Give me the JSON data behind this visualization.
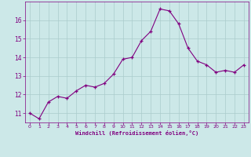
{
  "x": [
    0,
    1,
    2,
    3,
    4,
    5,
    6,
    7,
    8,
    9,
    10,
    11,
    12,
    13,
    14,
    15,
    16,
    17,
    18,
    19,
    20,
    21,
    22,
    23
  ],
  "y": [
    11.0,
    10.7,
    11.6,
    11.9,
    11.8,
    12.2,
    12.5,
    12.4,
    12.6,
    13.1,
    13.9,
    14.0,
    14.9,
    15.4,
    16.6,
    16.5,
    15.8,
    14.5,
    13.8,
    13.6,
    13.2,
    13.3,
    13.2,
    13.6
  ],
  "line_color": "#800080",
  "marker": "+",
  "bg_color": "#cce8e8",
  "grid_color": "#aacccc",
  "xlabel": "Windchill (Refroidissement éolien,°C)",
  "xlabel_color": "#800080",
  "tick_color": "#800080",
  "ylim": [
    10.5,
    17.0
  ],
  "yticks": [
    11,
    12,
    13,
    14,
    15,
    16
  ],
  "xticks": [
    0,
    1,
    2,
    3,
    4,
    5,
    6,
    7,
    8,
    9,
    10,
    11,
    12,
    13,
    14,
    15,
    16,
    17,
    18,
    19,
    20,
    21,
    22,
    23
  ],
  "figsize": [
    3.2,
    2.0
  ],
  "dpi": 100
}
